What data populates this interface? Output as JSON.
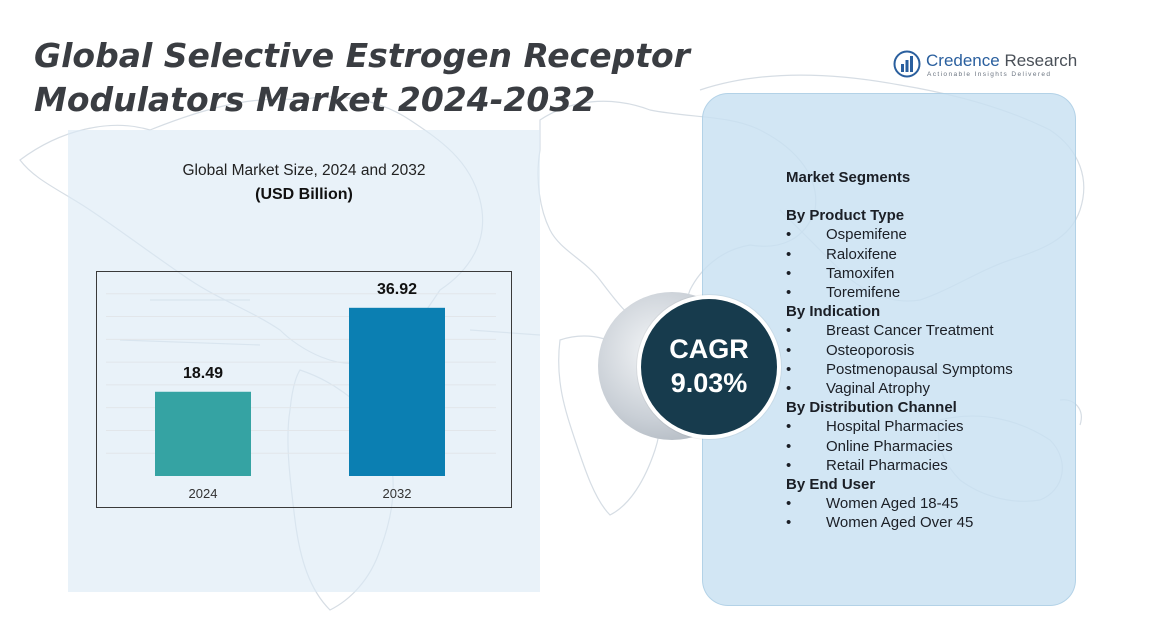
{
  "title": "Global Selective Estrogen Receptor Modulators Market  2024-2032",
  "logo": {
    "name_part1": "Credence",
    "name_part2": "Research",
    "tagline": "Actionable Insights Delivered"
  },
  "colors": {
    "bar_2024": "#35a3a3",
    "bar_2032": "#0b7fb2",
    "cagr_circle": "#173b4d",
    "title": "#3a3d42"
  },
  "chart_data": {
    "type": "bar",
    "title": "Global Market Size, 2024 and 2032",
    "unit": "(USD Billion)",
    "categories": [
      "2024",
      "2032"
    ],
    "values": [
      18.49,
      36.92
    ],
    "data_labels": [
      "18.49",
      "36.92"
    ],
    "ylim": [
      0,
      45
    ],
    "grid": true,
    "axis_tick_labels_visible": false
  },
  "cagr": {
    "label": "CAGR",
    "value": "9.03%"
  },
  "segments": {
    "heading": "Market Segments",
    "groups": [
      {
        "title": "By Product Type",
        "items": [
          "Ospemifene",
          "Raloxifene",
          "Tamoxifen",
          "Toremifene"
        ]
      },
      {
        "title": "By Indication",
        "items": [
          "Breast Cancer Treatment",
          "Osteoporosis",
          "Postmenopausal Symptoms",
          "Vaginal Atrophy"
        ]
      },
      {
        "title": "By Distribution Channel",
        "items": [
          "Hospital Pharmacies",
          "Online Pharmacies",
          "Retail Pharmacies"
        ]
      },
      {
        "title": "By End User",
        "items": [
          "Women Aged 18-45",
          "Women Aged Over 45"
        ]
      }
    ]
  }
}
